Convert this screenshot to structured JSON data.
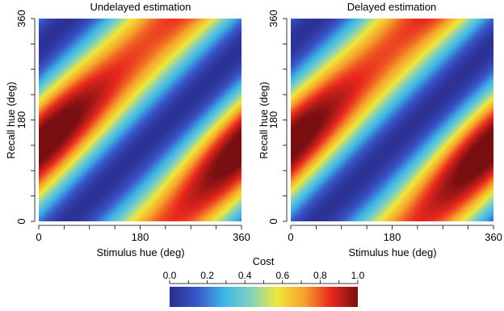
{
  "chart_data": [
    {
      "type": "heatmap",
      "title": "Undelayed estimation",
      "xlabel": "Stimulus hue (deg)",
      "ylabel": "Recall hue (deg)",
      "xlim": [
        0,
        360
      ],
      "ylim": [
        0,
        360
      ],
      "x_ticks": [
        0,
        180,
        360
      ],
      "y_ticks": [
        0,
        180,
        360
      ],
      "x_tick_labels": [
        "0",
        "180",
        "360"
      ],
      "y_tick_labels": [
        "0",
        "180",
        "360"
      ],
      "value_range": [
        0,
        1
      ],
      "peak_band_offset_deg": 128,
      "peaks": [
        {
          "stimulus": 50,
          "recall": 225,
          "value": 0.98
        },
        {
          "stimulus": 300,
          "recall": 100,
          "value": 1.0
        }
      ]
    },
    {
      "type": "heatmap",
      "title": "Delayed estimation",
      "xlabel": "Stimulus hue (deg)",
      "ylabel": "Recall hue (deg)",
      "xlim": [
        0,
        360
      ],
      "ylim": [
        0,
        360
      ],
      "x_ticks": [
        0,
        180,
        360
      ],
      "y_ticks": [
        0,
        180,
        360
      ],
      "x_tick_labels": [
        "0",
        "180",
        "360"
      ],
      "y_tick_labels": [
        "0",
        "180",
        "360"
      ],
      "value_range": [
        0,
        1
      ],
      "peak_band_offset_deg": 135,
      "peaks": [
        {
          "stimulus": 30,
          "recall": 215,
          "value": 1.0
        },
        {
          "stimulus": 280,
          "recall": 90,
          "value": 1.0
        }
      ]
    }
  ],
  "colorbar": {
    "title": "Cost",
    "min": 0.0,
    "max": 1.0,
    "ticks": [
      0.0,
      0.2,
      0.4,
      0.6,
      0.8,
      1.0
    ],
    "tick_labels": [
      "0.0",
      "0.2",
      "0.4",
      "0.6",
      "0.8",
      "1.0"
    ],
    "colors": [
      "#2a2c8e",
      "#3a55c8",
      "#3cb5e8",
      "#7fd0c0",
      "#f0e83a",
      "#f7a22b",
      "#e9281e",
      "#7a0f12"
    ]
  }
}
